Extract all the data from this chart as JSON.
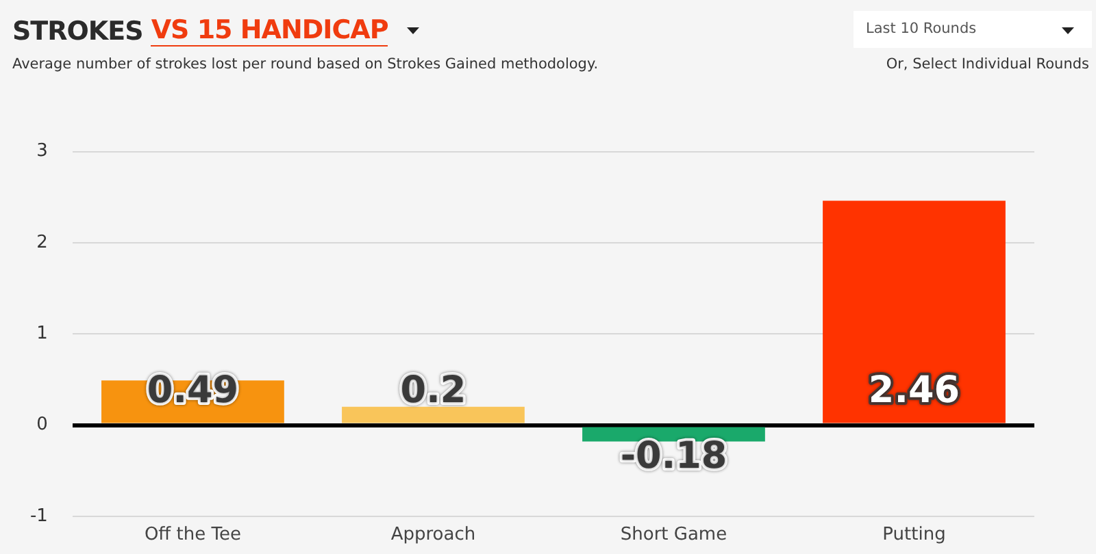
{
  "chart_data": {
    "type": "bar",
    "title": "STROKES VS 15 HANDICAP",
    "subtitle": "Average number of strokes lost per round based on Strokes Gained methodology.",
    "annotations": [
      "Last 10 Rounds",
      "Or, Select Individual Rounds"
    ],
    "categories": [
      "Off the Tee",
      "Approach",
      "Short Game",
      "Putting"
    ],
    "values": [
      0.49,
      0.2,
      -0.18,
      2.46
    ],
    "colors": [
      "#f7930f",
      "#f9c55a",
      "#1aa96b",
      "#ff3300"
    ],
    "ylim": [
      -1,
      3
    ],
    "yticks": [
      -1,
      0,
      1,
      2,
      3
    ],
    "grid": "y",
    "data_labels": true
  }
}
